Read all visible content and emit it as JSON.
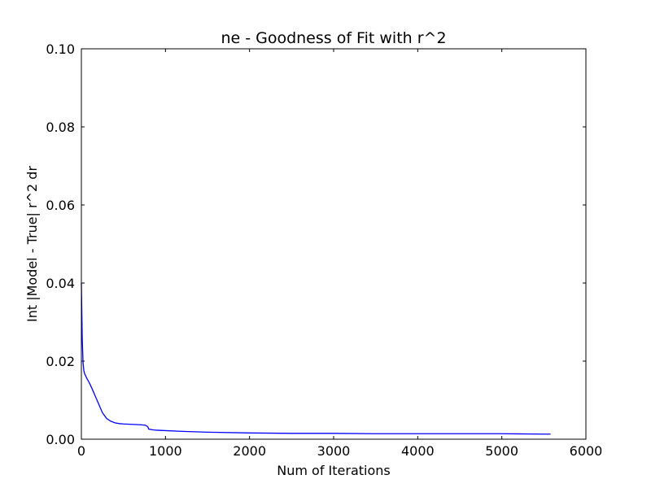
{
  "chart_data": {
    "type": "line",
    "title": "ne - Goodness of Fit with r^2",
    "xlabel": "Num of Iterations",
    "ylabel": "Int |Model - True| r^2 dr",
    "xlim": [
      0,
      6000
    ],
    "ylim": [
      0,
      0.1
    ],
    "xticks": [
      0,
      1000,
      2000,
      3000,
      4000,
      5000,
      6000
    ],
    "xtick_labels": [
      "0",
      "1000",
      "2000",
      "3000",
      "4000",
      "5000",
      "6000"
    ],
    "yticks": [
      0,
      0.02,
      0.04,
      0.06,
      0.08,
      0.1
    ],
    "ytick_labels": [
      "0.00",
      "0.02",
      "0.04",
      "0.06",
      "0.08",
      "0.10"
    ],
    "grid": false,
    "series": [
      {
        "color": "#0000ff",
        "x": [
          0,
          10,
          20,
          30,
          40,
          50,
          60,
          80,
          100,
          130,
          160,
          200,
          250,
          300,
          350,
          400,
          450,
          500,
          600,
          700,
          760,
          790,
          800,
          850,
          900,
          1000,
          1200,
          1500,
          2000,
          2500,
          3000,
          3500,
          4000,
          4500,
          5000,
          5500,
          5580
        ],
        "y": [
          0.04,
          0.026,
          0.0195,
          0.0175,
          0.0167,
          0.0163,
          0.0158,
          0.015,
          0.0142,
          0.0128,
          0.0113,
          0.0093,
          0.0068,
          0.0053,
          0.0046,
          0.0042,
          0.004,
          0.0039,
          0.0038,
          0.0037,
          0.0036,
          0.0032,
          0.0026,
          0.0024,
          0.0023,
          0.0022,
          0.002,
          0.0018,
          0.0016,
          0.0015,
          0.0015,
          0.0014,
          0.0014,
          0.0014,
          0.0014,
          0.0013,
          0.0013
        ]
      }
    ]
  }
}
